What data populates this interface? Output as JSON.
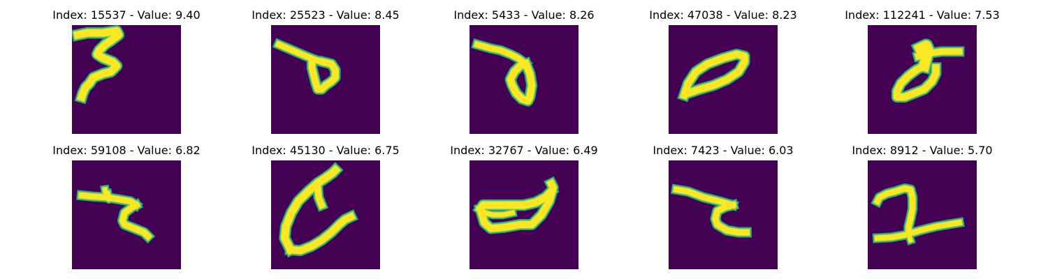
{
  "colors": {
    "background": "#440154",
    "stroke_core": "#fde725",
    "stroke_halo": "#1fa187",
    "stroke_mid": "#7ad151"
  },
  "panels": [
    {
      "title": "Index: 15537 - Value: 9.40",
      "digit": "d3"
    },
    {
      "title": "Index: 25523 - Value: 8.45",
      "digit": "d4a"
    },
    {
      "title": "Index: 5433 - Value: 8.26",
      "digit": "d4b"
    },
    {
      "title": "Index: 47038 - Value: 8.23",
      "digit": "d0"
    },
    {
      "title": "Index: 112241 - Value: 7.53",
      "digit": "d5"
    },
    {
      "title": "Index: 59108 - Value: 6.82",
      "digit": "dz1"
    },
    {
      "title": "Index: 45130 - Value: 6.75",
      "digit": "dc"
    },
    {
      "title": "Index: 32767 - Value: 6.49",
      "digit": "dbowl"
    },
    {
      "title": "Index: 7423 - Value: 6.03",
      "digit": "dz2"
    },
    {
      "title": "Index: 8912 - Value: 5.70",
      "digit": "d2x"
    }
  ]
}
